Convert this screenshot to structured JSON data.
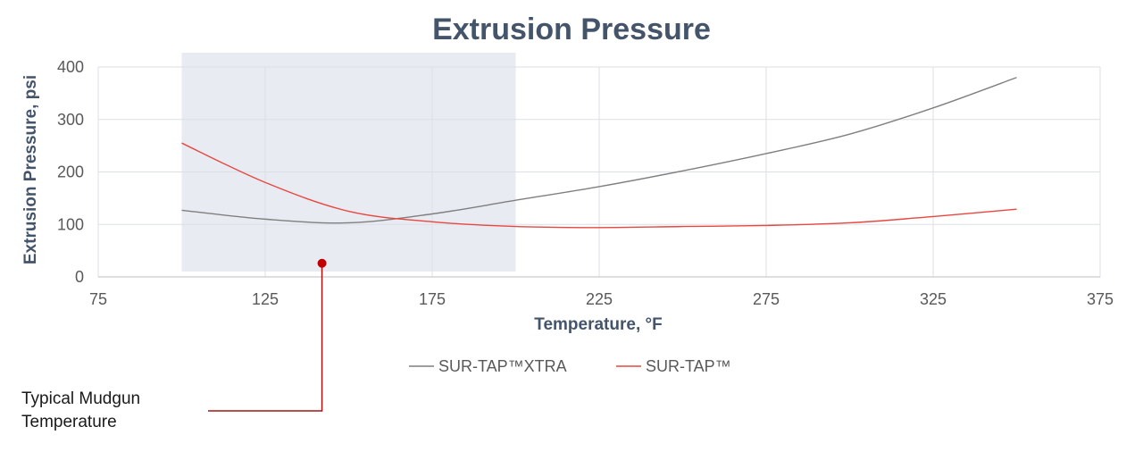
{
  "chart_data": {
    "type": "line",
    "title": "Extrusion Pressure",
    "xlabel": "Temperature, °F",
    "ylabel": "Extrusion Pressure, psi",
    "xlim": [
      75,
      375
    ],
    "ylim": [
      0,
      400
    ],
    "xticks": [
      75,
      125,
      175,
      225,
      275,
      325,
      375
    ],
    "yticks": [
      0,
      100,
      200,
      300,
      400
    ],
    "grid": true,
    "legend_position": "bottom",
    "shaded_region": {
      "x": [
        100,
        200
      ],
      "color": "#e9ebf2"
    },
    "series": [
      {
        "name": "SUR-TAP™XTRA",
        "color": "#7f7f7f",
        "x": [
          100,
          125,
          150,
          175,
          200,
          225,
          250,
          275,
          300,
          325,
          350
        ],
        "y": [
          127,
          110,
          103,
          120,
          146,
          172,
          202,
          235,
          272,
          322,
          380
        ]
      },
      {
        "name": "SUR-TAP™",
        "color": "#e8473f",
        "x": [
          100,
          125,
          150,
          175,
          200,
          225,
          250,
          275,
          300,
          325,
          350
        ],
        "y": [
          255,
          180,
          125,
          105,
          96,
          94,
          96,
          98,
          103,
          115,
          129
        ]
      }
    ],
    "annotation": {
      "text_line1": "Typical Mudgun",
      "text_line2": "Temperature",
      "point": {
        "x": 142,
        "y": 26
      },
      "color": "#c00000"
    }
  }
}
